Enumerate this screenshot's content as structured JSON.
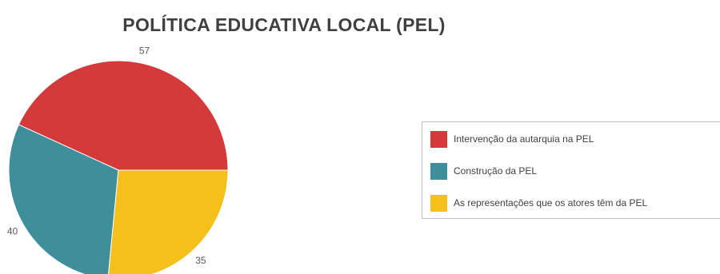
{
  "chart_data": {
    "type": "pie",
    "title": "POLÍTICA EDUCATIVA LOCAL (PEL)",
    "categories": [
      "Intervenção da autarquia na PEL",
      "Construção da PEL",
      "As representações que os atores têm da PEL"
    ],
    "values": [
      57,
      40,
      35
    ],
    "colors": [
      "#d43a3a",
      "#3e8e9c",
      "#f5bf1c"
    ],
    "legend_position": "right"
  }
}
